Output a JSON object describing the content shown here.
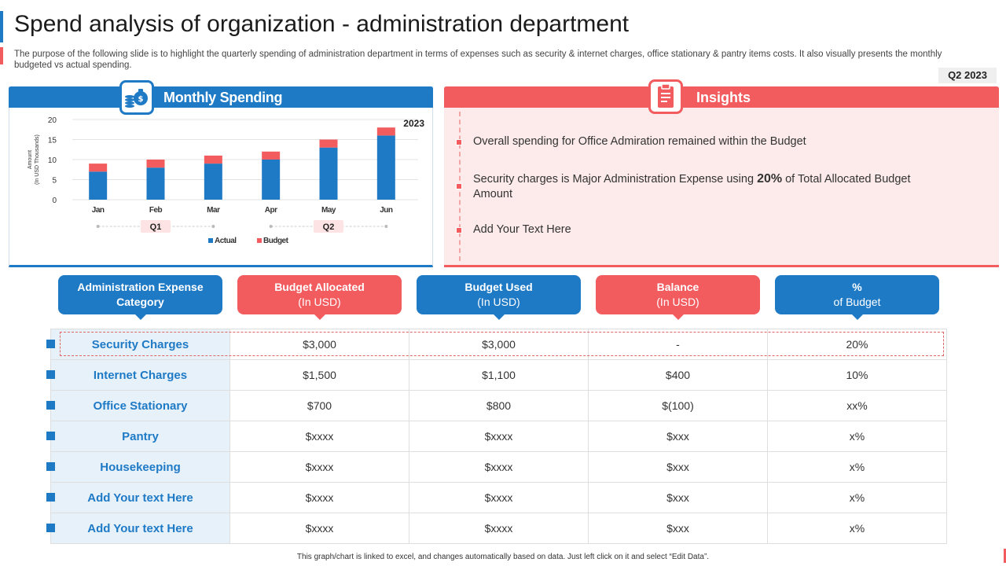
{
  "header": {
    "title": "Spend analysis of organization - administration department",
    "subtitle": "The purpose of the following slide is to highlight the quarterly spending of administration department in terms of expenses such as security & internet charges, office stationary & pantry items costs. It also visually presents the monthly budgeted vs actual spending.",
    "quarter_badge": "Q2 2023"
  },
  "spending_panel": {
    "title": "Monthly Spending",
    "icon": "money-bag-icon"
  },
  "chart_data": {
    "type": "bar",
    "stacked": true,
    "year_label": "2023",
    "categories": [
      "Jan",
      "Feb",
      "Mar",
      "Apr",
      "May",
      "Jun"
    ],
    "series": [
      {
        "name": "Actual",
        "values": [
          7,
          8,
          9,
          10,
          13,
          16
        ],
        "color": "#1f7ac6"
      },
      {
        "name": "Budget",
        "values": [
          2,
          2,
          2,
          2,
          2,
          2
        ],
        "color": "#f25c5f"
      }
    ],
    "ylabel_line1": "Amount",
    "ylabel_line2": "(In USD Thousands)",
    "ylim": [
      0,
      20
    ],
    "yticks": [
      "0",
      "5",
      "10",
      "15",
      "20"
    ],
    "groups": [
      {
        "label": "Q1",
        "from": 0,
        "to": 2
      },
      {
        "label": "Q2",
        "from": 3,
        "to": 5
      }
    ],
    "legend_position": "bottom",
    "grid": "horizontal"
  },
  "insights_panel": {
    "title": "Insights",
    "icon": "clipboard-icon",
    "items": [
      {
        "text": "Overall spending for Office Admiration remained within the Budget"
      },
      {
        "pre": "Security charges is Major Administration Expense using ",
        "bold": "20%",
        "post": " of Total Allocated Budget Amount"
      },
      {
        "text": "Add Your Text Here"
      }
    ]
  },
  "table": {
    "headers": [
      {
        "main": "Administration Expense Category",
        "sub": ""
      },
      {
        "main": "Budget Allocated",
        "sub": "(In USD)"
      },
      {
        "main": "Budget Used",
        "sub": "(In USD)"
      },
      {
        "main": "Balance",
        "sub": "(In USD)"
      },
      {
        "main": "%",
        "sub": "of Budget"
      }
    ],
    "rows": [
      [
        "Security Charges",
        "$3,000",
        "$3,000",
        "-",
        "20%"
      ],
      [
        "Internet Charges",
        "$1,500",
        "$1,100",
        "$400",
        "10%"
      ],
      [
        "Office Stationary",
        "$700",
        "$800",
        "$(100)",
        "xx%"
      ],
      [
        "Pantry",
        "$xxxx",
        "$xxxx",
        "$xxx",
        "x%"
      ],
      [
        "Housekeeping",
        "$xxxx",
        "$xxxx",
        "$xxx",
        "x%"
      ],
      [
        "Add Your text Here",
        "$xxxx",
        "$xxxx",
        "$xxx",
        "x%"
      ],
      [
        "Add Your text Here",
        "$xxxx",
        "$xxxx",
        "$xxx",
        "x%"
      ]
    ]
  },
  "footer": {
    "note": "This graph/chart is linked to excel, and changes automatically based on data. Just left click on it and select “Edit Data”."
  }
}
